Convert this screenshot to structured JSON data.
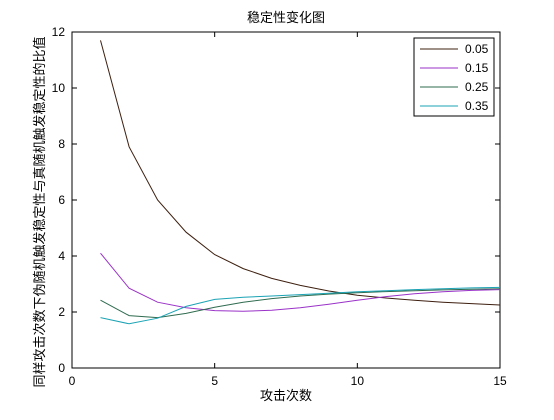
{
  "chart_data": {
    "type": "line",
    "title": "稳定性变化图",
    "xlabel": "攻击次数",
    "ylabel": "同样攻击次数下伪随机触发稳定性与真随机触发稳定性的比值",
    "xlim": [
      0,
      15
    ],
    "ylim": [
      0,
      12
    ],
    "xticks": [
      "0",
      "5",
      "10",
      "15"
    ],
    "yticks": [
      "0",
      "2",
      "4",
      "6",
      "8",
      "10",
      "12"
    ],
    "grid": false,
    "legend": "top-right",
    "x": [
      1,
      2,
      3,
      4,
      5,
      6,
      7,
      8,
      9,
      10,
      11,
      12,
      13,
      14,
      15
    ],
    "series": [
      {
        "name": "0.05",
        "color": "#3d1f0f",
        "values": [
          11.7,
          7.9,
          6.0,
          4.85,
          4.05,
          3.55,
          3.2,
          2.95,
          2.75,
          2.6,
          2.5,
          2.42,
          2.35,
          2.3,
          2.25
        ]
      },
      {
        "name": "0.15",
        "color": "#9a32c8",
        "values": [
          4.1,
          2.85,
          2.35,
          2.15,
          2.05,
          2.03,
          2.06,
          2.15,
          2.28,
          2.42,
          2.55,
          2.65,
          2.72,
          2.77,
          2.8
        ]
      },
      {
        "name": "0.25",
        "color": "#2f6b4f",
        "values": [
          2.42,
          1.87,
          1.8,
          1.95,
          2.17,
          2.35,
          2.48,
          2.57,
          2.64,
          2.69,
          2.73,
          2.76,
          2.79,
          2.81,
          2.83
        ]
      },
      {
        "name": "0.35",
        "color": "#1ba3b5",
        "values": [
          1.8,
          1.58,
          1.78,
          2.2,
          2.45,
          2.53,
          2.57,
          2.62,
          2.67,
          2.72,
          2.76,
          2.8,
          2.83,
          2.86,
          2.88
        ]
      }
    ]
  }
}
